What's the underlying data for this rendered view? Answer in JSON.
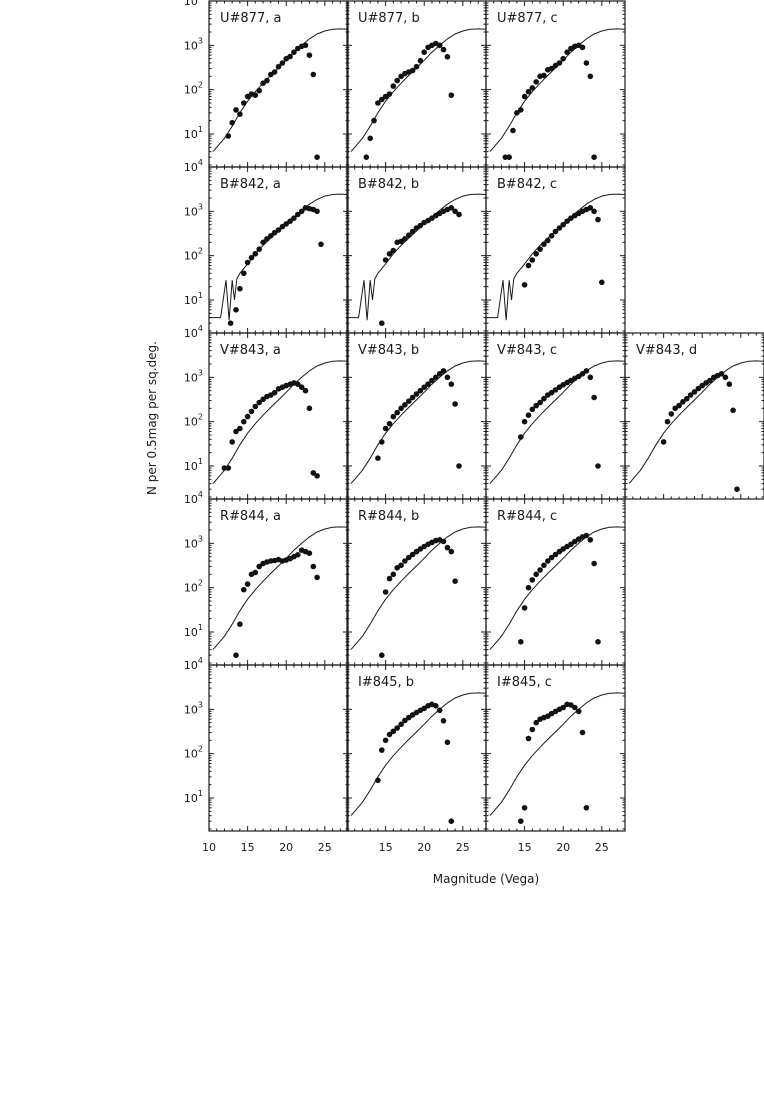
{
  "figure": {
    "xlabel": "Magnitude (Vega)",
    "ylabel": "N per 0.5mag per sq.deg.",
    "x_tick_labels_first_column": [
      "10",
      "15",
      "20",
      "25"
    ],
    "x_tick_labels_other_columns": [
      "15",
      "20",
      "25"
    ],
    "y_tick_labels": [
      {
        "base": "10",
        "exp": "1",
        "value": 10
      },
      {
        "base": "10",
        "exp": "2",
        "value": 100
      },
      {
        "base": "10",
        "exp": "3",
        "value": 1000
      },
      {
        "base": "10",
        "exp": "4",
        "value": 10000
      }
    ]
  },
  "chart_data": {
    "type": "scatter",
    "xlim": [
      10,
      28
    ],
    "ylim": [
      1.8,
      10000
    ],
    "y_scale": "log",
    "grid": false,
    "model_curve_x": [
      10.5,
      11,
      12,
      13,
      14,
      15,
      16,
      17,
      18,
      19,
      20,
      21,
      22,
      23,
      24,
      25,
      26,
      27,
      28
    ],
    "model_curve_y": [
      4,
      5,
      8,
      15,
      30,
      55,
      90,
      140,
      210,
      310,
      460,
      700,
      1000,
      1400,
      1800,
      2100,
      2300,
      2350,
      2300
    ],
    "bband_model_curve_x": [
      10.0,
      11.5,
      12.2,
      12.6,
      13.0,
      13.3,
      13.6,
      14.0,
      15,
      16,
      17,
      18,
      19,
      20,
      21,
      22,
      23,
      24,
      25,
      26,
      27,
      28
    ],
    "bband_model_curve_y": [
      4,
      4,
      28,
      3.5,
      28,
      10,
      30,
      40,
      65,
      110,
      170,
      250,
      360,
      520,
      750,
      1050,
      1450,
      1850,
      2200,
      2400,
      2450,
      2400
    ],
    "panels": [
      {
        "label": "U#877, a",
        "x": [
          12.5,
          13,
          13.5,
          14,
          14.5,
          15,
          15.5,
          16,
          16.5,
          17,
          17.5,
          18,
          18.5,
          19,
          19.5,
          20,
          20.5,
          21,
          21.5,
          22,
          22.5,
          23,
          23.5,
          24
        ],
        "y": [
          9,
          18,
          35,
          28,
          50,
          70,
          80,
          75,
          95,
          140,
          160,
          220,
          250,
          330,
          400,
          500,
          560,
          700,
          850,
          950,
          1000,
          600,
          220,
          3
        ]
      },
      {
        "label": "U#877, b",
        "x": [
          12.5,
          13,
          13.5,
          14,
          14.5,
          15,
          15.5,
          16,
          16.5,
          17,
          17.5,
          18,
          18.5,
          19,
          19.5,
          20,
          20.5,
          21,
          21.5,
          22,
          22.5,
          23,
          23.5
        ],
        "y": [
          3,
          8,
          20,
          50,
          60,
          70,
          80,
          120,
          160,
          200,
          230,
          250,
          270,
          330,
          450,
          700,
          900,
          1000,
          1100,
          1000,
          800,
          550,
          75
        ]
      },
      {
        "label": "U#877, c",
        "x": [
          12.5,
          13,
          13.5,
          14,
          14.5,
          15,
          15.5,
          16,
          16.5,
          17,
          17.5,
          18,
          18.5,
          19,
          19.5,
          20,
          20.5,
          21,
          21.5,
          22,
          22.5,
          23,
          23.5,
          24
        ],
        "y": [
          3,
          3,
          12,
          30,
          35,
          70,
          90,
          110,
          150,
          200,
          210,
          280,
          300,
          350,
          400,
          500,
          700,
          850,
          950,
          1000,
          900,
          400,
          200,
          3
        ]
      },
      {
        "label": "B#842, a",
        "x": [
          12.8,
          13.5,
          14,
          14.5,
          15,
          15.5,
          16,
          16.5,
          17,
          17.5,
          18,
          18.5,
          19,
          19.5,
          20,
          20.5,
          21,
          21.5,
          22,
          22.5,
          23,
          23.5,
          24,
          24.5
        ],
        "y": [
          3,
          6,
          18,
          40,
          70,
          90,
          110,
          140,
          200,
          240,
          280,
          330,
          380,
          450,
          520,
          600,
          700,
          850,
          1000,
          1200,
          1150,
          1100,
          1000,
          180
        ]
      },
      {
        "label": "B#842, b",
        "x": [
          14.5,
          15,
          15.5,
          16,
          16.5,
          17,
          17.5,
          18,
          18.5,
          19,
          19.5,
          20,
          20.5,
          21,
          21.5,
          22,
          22.5,
          23,
          23.5,
          24,
          24.5
        ],
        "y": [
          3,
          80,
          110,
          130,
          200,
          210,
          240,
          290,
          350,
          420,
          480,
          560,
          620,
          700,
          800,
          900,
          1000,
          1100,
          1200,
          1000,
          850
        ]
      },
      {
        "label": "B#842, c",
        "x": [
          15,
          15.5,
          16,
          16.5,
          17,
          17.5,
          18,
          18.5,
          19,
          19.5,
          20,
          20.5,
          21,
          21.5,
          22,
          22.5,
          23,
          23.5,
          24,
          24.5,
          25
        ],
        "y": [
          22,
          60,
          80,
          110,
          140,
          180,
          220,
          280,
          350,
          420,
          500,
          600,
          700,
          800,
          900,
          1000,
          1100,
          1200,
          1000,
          650,
          25
        ]
      },
      {
        "label": "V#843, a",
        "x": [
          12,
          12.5,
          13,
          13.5,
          14,
          14.5,
          15,
          15.5,
          16,
          16.5,
          17,
          17.5,
          18,
          18.5,
          19,
          19.5,
          20,
          20.5,
          21,
          21.5,
          22,
          22.5,
          23,
          23.5,
          24
        ],
        "y": [
          9,
          9,
          35,
          60,
          70,
          100,
          130,
          170,
          220,
          270,
          320,
          370,
          400,
          450,
          550,
          600,
          650,
          700,
          750,
          700,
          600,
          500,
          200,
          7,
          6
        ]
      },
      {
        "label": "V#843, b",
        "x": [
          14,
          14.5,
          15,
          15.5,
          16,
          16.5,
          17,
          17.5,
          18,
          18.5,
          19,
          19.5,
          20,
          20.5,
          21,
          21.5,
          22,
          22.5,
          23,
          23.5,
          24,
          24.5
        ],
        "y": [
          15,
          35,
          70,
          90,
          130,
          160,
          200,
          240,
          290,
          350,
          420,
          500,
          600,
          700,
          850,
          1000,
          1200,
          1400,
          1000,
          700,
          250,
          10
        ]
      },
      {
        "label": "V#843, c",
        "x": [
          14.5,
          15,
          15.5,
          16,
          16.5,
          17,
          17.5,
          18,
          18.5,
          19,
          19.5,
          20,
          20.5,
          21,
          21.5,
          22,
          22.5,
          23,
          23.5,
          24,
          24.5
        ],
        "y": [
          45,
          100,
          140,
          190,
          230,
          270,
          330,
          400,
          450,
          520,
          600,
          680,
          760,
          850,
          950,
          1050,
          1200,
          1400,
          1000,
          350,
          10
        ]
      },
      {
        "label": "V#843, d",
        "x": [
          15,
          15.5,
          16,
          16.5,
          17,
          17.5,
          18,
          18.5,
          19,
          19.5,
          20,
          20.5,
          21,
          21.5,
          22,
          22.5,
          23,
          23.5,
          24,
          24.5
        ],
        "y": [
          35,
          100,
          150,
          200,
          230,
          280,
          330,
          400,
          470,
          560,
          650,
          750,
          850,
          1000,
          1100,
          1200,
          1000,
          700,
          180,
          3
        ]
      },
      {
        "label": "R#844, a",
        "x": [
          13.5,
          14,
          14.5,
          15,
          15.5,
          16,
          16.5,
          17,
          17.5,
          18,
          18.5,
          19,
          19.5,
          20,
          20.5,
          21,
          21.5,
          22,
          22.5,
          23,
          23.5,
          24
        ],
        "y": [
          3,
          15,
          90,
          120,
          200,
          220,
          300,
          350,
          380,
          400,
          410,
          430,
          400,
          420,
          450,
          500,
          550,
          700,
          650,
          600,
          300,
          170
        ]
      },
      {
        "label": "R#844, b",
        "x": [
          14.5,
          15,
          15.5,
          16,
          16.5,
          17,
          17.5,
          18,
          18.5,
          19,
          19.5,
          20,
          20.5,
          21,
          21.5,
          22,
          22.5,
          23,
          23.5,
          24
        ],
        "y": [
          3,
          80,
          160,
          200,
          280,
          320,
          400,
          480,
          560,
          650,
          750,
          850,
          950,
          1050,
          1150,
          1200,
          1100,
          800,
          650,
          140
        ]
      },
      {
        "label": "R#844, c",
        "x": [
          14.5,
          15,
          15.5,
          16,
          16.5,
          17,
          17.5,
          18,
          18.5,
          19,
          19.5,
          20,
          20.5,
          21,
          21.5,
          22,
          22.5,
          23,
          23.5,
          24,
          24.5
        ],
        "y": [
          6,
          35,
          100,
          150,
          200,
          250,
          320,
          400,
          480,
          560,
          650,
          750,
          850,
          950,
          1100,
          1250,
          1400,
          1500,
          1200,
          350,
          6
        ]
      },
      {
        "label": "I#845, b",
        "x": [
          14,
          14.5,
          15,
          15.5,
          16,
          16.5,
          17,
          17.5,
          18,
          18.5,
          19,
          19.5,
          20,
          20.5,
          21,
          21.5,
          22,
          22.5,
          23,
          23.5
        ],
        "y": [
          25,
          120,
          200,
          270,
          320,
          380,
          460,
          560,
          650,
          750,
          850,
          950,
          1050,
          1200,
          1300,
          1200,
          950,
          550,
          180,
          3
        ]
      },
      {
        "label": "I#845, c",
        "x": [
          14.5,
          15,
          15.5,
          16,
          16.5,
          17,
          17.5,
          18,
          18.5,
          19,
          19.5,
          20,
          20.5,
          21,
          21.5,
          22,
          22.5,
          23
        ],
        "y": [
          3,
          6,
          220,
          350,
          500,
          600,
          650,
          700,
          800,
          900,
          1000,
          1100,
          1300,
          1250,
          1100,
          900,
          300,
          6
        ]
      }
    ]
  }
}
